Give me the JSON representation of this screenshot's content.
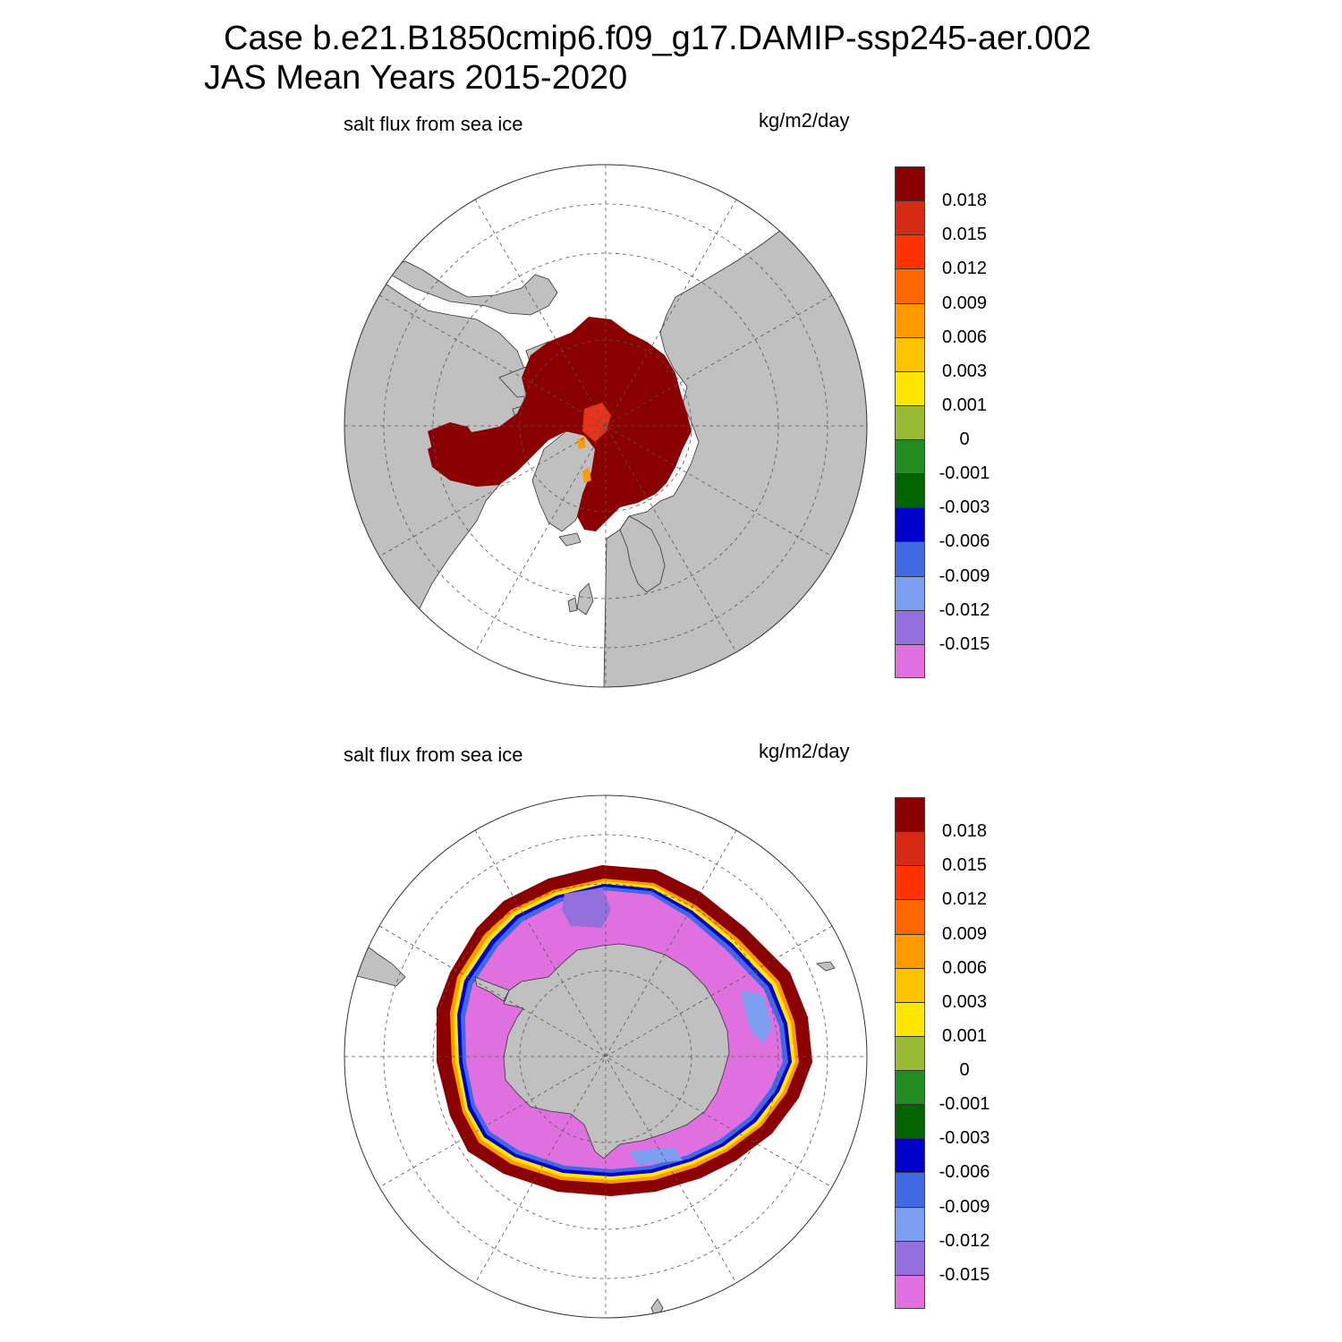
{
  "title": {
    "line1": "Case b.e21.B1850cmip6.f09_g17.DAMIP-ssp245-aer.002",
    "line2": "JAS Mean   Years 2015-2020"
  },
  "panels": [
    {
      "id": "north",
      "variable_label": "salt flux from sea ice",
      "units_label": "kg/m2/day"
    },
    {
      "id": "south",
      "variable_label": "salt flux from sea ice",
      "units_label": "kg/m2/day"
    }
  ],
  "colorbar": {
    "labels": [
      "0.018",
      "0.015",
      "0.012",
      "0.009",
      "0.006",
      "0.003",
      "0.001",
      "0",
      "-0.001",
      "-0.003",
      "-0.006",
      "-0.009",
      "-0.012",
      "-0.015"
    ],
    "colors": [
      "#8b0000",
      "#d62a14",
      "#ff3300",
      "#ff6600",
      "#ff9900",
      "#ffc400",
      "#ffe600",
      "#99bb33",
      "#228b22",
      "#006400",
      "#0000cd",
      "#4169e1",
      "#7b9ef0",
      "#9370db",
      "#e070e0"
    ]
  },
  "map_colors": {
    "land": "#c0c0c0",
    "land_edge": "#333333",
    "ocean": "#ffffff",
    "grid": "#555555",
    "positive_flux": "#8b0000",
    "positive_mid": "#e6331a",
    "orange": "#ff9900",
    "yellow": "#ffe600",
    "navy": "#0000cd",
    "blue": "#4169e1",
    "light_blue": "#7b9ef0",
    "purple": "#9370db",
    "magenta": "#e070e0"
  }
}
